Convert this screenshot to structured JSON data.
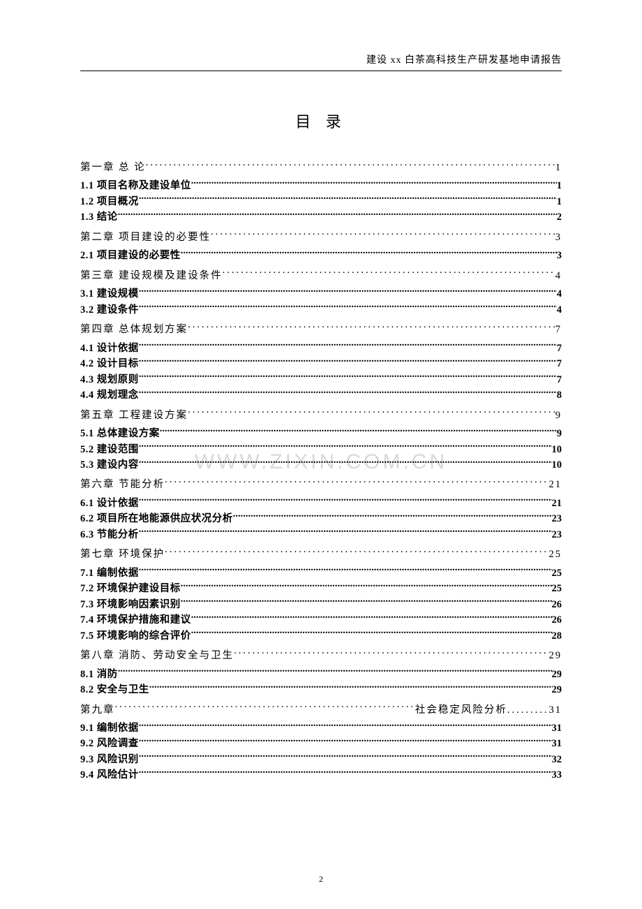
{
  "header": "建设 xx 白茶高科技生产研发基地申请报告",
  "title": "目  录",
  "watermark": "WWW.ZIXIN.COM.CN",
  "page_number": "2",
  "toc": [
    {
      "type": "chapter",
      "label": "第一章  总 论",
      "page": "1"
    },
    {
      "type": "section",
      "label": "1.1 项目名称及建设单位",
      "page": "1"
    },
    {
      "type": "section",
      "label": "1.2 项目概况",
      "page": "1"
    },
    {
      "type": "section",
      "label": "1.3 结论",
      "page": "2"
    },
    {
      "type": "chapter",
      "label": "第二章  项目建设的必要性",
      "page": "3"
    },
    {
      "type": "section",
      "label": "2.1 项目建设的必要性",
      "page": "3"
    },
    {
      "type": "chapter",
      "label": "第三章 建设规模及建设条件",
      "page": "4"
    },
    {
      "type": "section",
      "label": "3.1 建设规模",
      "page": "4"
    },
    {
      "type": "section",
      "label": "3.2 建设条件",
      "page": "4"
    },
    {
      "type": "chapter",
      "label": "第四章 总体规划方案",
      "page": "7"
    },
    {
      "type": "section",
      "label": "4.1 设计依据",
      "page": "7"
    },
    {
      "type": "section",
      "label": "4.2 设计目标",
      "page": "7"
    },
    {
      "type": "section",
      "label": "4.3 规划原则",
      "page": "7"
    },
    {
      "type": "section",
      "label": "4.4 规划理念",
      "page": "8"
    },
    {
      "type": "chapter",
      "label": "第五章 工程建设方案",
      "page": "9"
    },
    {
      "type": "section",
      "label": "5.1 总体建设方案",
      "page": "9"
    },
    {
      "type": "section",
      "label": "5.2 建设范围",
      "page": "10"
    },
    {
      "type": "section",
      "label": "5.3 建设内容",
      "page": "10"
    },
    {
      "type": "chapter",
      "label": "第六章 节能分析",
      "page": "21"
    },
    {
      "type": "section",
      "label": "6.1 设计依据",
      "page": "21"
    },
    {
      "type": "section",
      "label": "6.2 项目所在地能源供应状况分析",
      "page": "23"
    },
    {
      "type": "section",
      "label": "6.3 节能分析",
      "page": "23"
    },
    {
      "type": "chapter",
      "label": "第七章 环境保护",
      "page": "25"
    },
    {
      "type": "section",
      "label": "7.1 编制依据",
      "page": "25"
    },
    {
      "type": "section",
      "label": "7.2 环境保护建设目标",
      "page": "25"
    },
    {
      "type": "section",
      "label": "7.3 环境影响因素识别",
      "page": "26"
    },
    {
      "type": "section",
      "label": "7.4 环境保护措施和建议",
      "page": "26"
    },
    {
      "type": "section",
      "label": "7.5 环境影响的综合评价",
      "page": "28"
    },
    {
      "type": "chapter",
      "label": "第八章 消防、劳动安全与卫生",
      "page": "29"
    },
    {
      "type": "section",
      "label": "8.1 消防",
      "page": "29"
    },
    {
      "type": "section",
      "label": "8.2 安全与卫生",
      "page": "29"
    },
    {
      "type": "ch9",
      "label": "第九章",
      "mid": "社会稳定风险分析",
      "page": "31"
    },
    {
      "type": "section",
      "label": "9.1 编制依据",
      "page": "31"
    },
    {
      "type": "section",
      "label": "9.2 风险调查",
      "page": "31"
    },
    {
      "type": "section",
      "label": "9.3 风险识别",
      "page": "32"
    },
    {
      "type": "section",
      "label": "9.4 风险估计",
      "page": "33"
    }
  ]
}
